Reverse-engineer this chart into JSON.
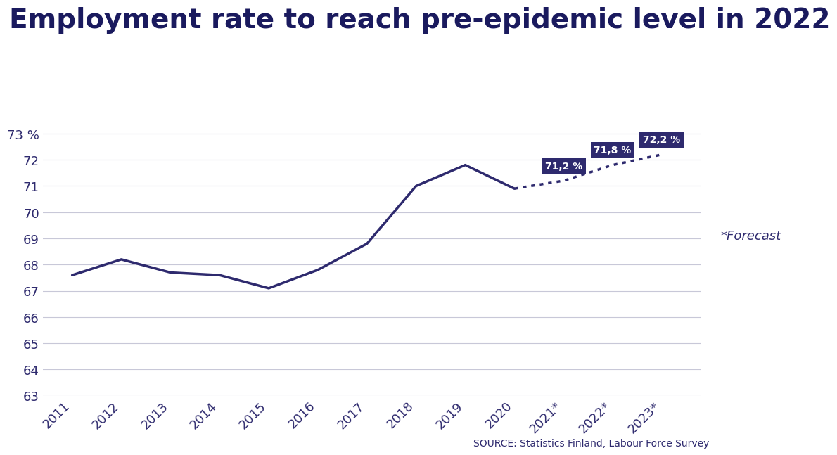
{
  "title": "Employment rate to reach pre-epidemic level in 2022",
  "source": "SOURCE: Statistics Finland, Labour Force Survey",
  "forecast_label": "*Forecast",
  "solid_years": [
    2011,
    2012,
    2013,
    2014,
    2015,
    2016,
    2017,
    2018,
    2019,
    2020
  ],
  "solid_values": [
    67.6,
    68.2,
    67.7,
    67.6,
    67.1,
    67.8,
    68.8,
    71.0,
    71.8,
    70.9
  ],
  "dotted_years": [
    2020,
    2021,
    2022,
    2023
  ],
  "dotted_values": [
    70.9,
    71.2,
    71.8,
    72.2
  ],
  "annotated_points": [
    {
      "year": 2021,
      "value": 71.2,
      "label": "71,2 %"
    },
    {
      "year": 2022,
      "value": 71.8,
      "label": "71,8 %"
    },
    {
      "year": 2023,
      "value": 72.2,
      "label": "72,2 %"
    }
  ],
  "line_color": "#2e2a6e",
  "dot_color": "#2e2a6e",
  "annotation_bg": "#2e2a6e",
  "annotation_text": "#ffffff",
  "grid_color": "#c8c8d8",
  "background_color": "#ffffff",
  "ylim": [
    63,
    73.5
  ],
  "yticks": [
    63,
    64,
    65,
    66,
    67,
    68,
    69,
    70,
    71,
    72,
    73
  ],
  "title_fontsize": 28,
  "title_color": "#1a1a5e",
  "tick_label_color": "#2e2a6e",
  "line_width": 2.5,
  "forecast_color": "#5a5a9e",
  "source_color": "#2e2a6e"
}
